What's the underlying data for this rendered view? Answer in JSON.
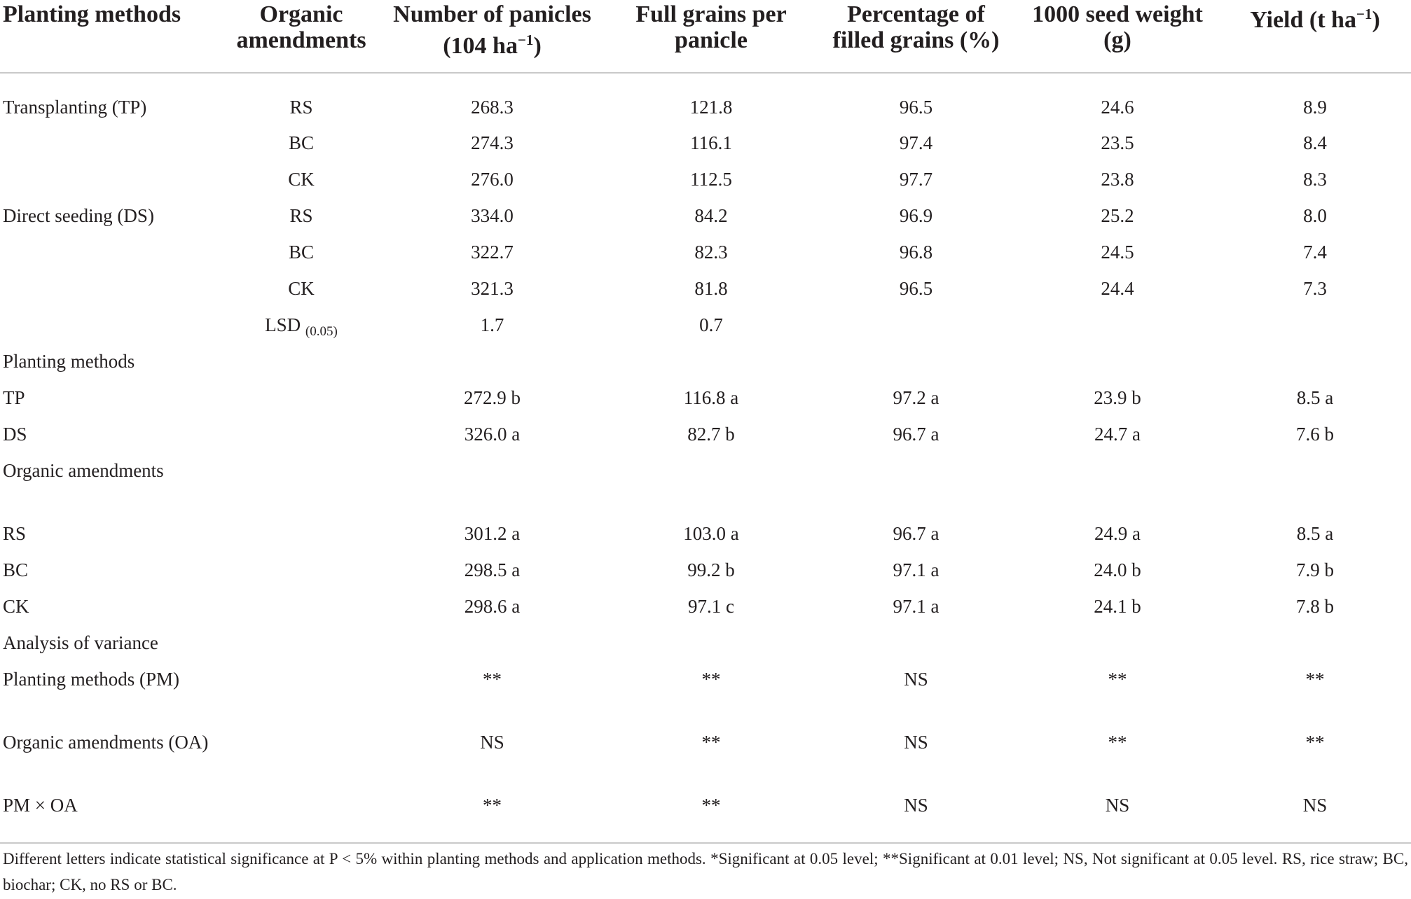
{
  "table": {
    "headers": [
      {
        "text": "Planting methods"
      },
      {
        "text": "Organic amendments"
      },
      {
        "text": "Number of panicles (104 ha",
        "sup": "−1",
        "after": ")"
      },
      {
        "text": "Full grains per panicle"
      },
      {
        "text": "Percentage of filled grains (%)"
      },
      {
        "text": "1000 seed weight (g)"
      },
      {
        "text": "Yield (t ha",
        "sup": "−1",
        "after": ")"
      }
    ],
    "rows": [
      [
        "Transplanting (TP)",
        "RS",
        "268.3",
        "121.8",
        "96.5",
        "24.6",
        "8.9"
      ],
      [
        "",
        "BC",
        "274.3",
        "116.1",
        "97.4",
        "23.5",
        "8.4"
      ],
      [
        "",
        "CK",
        "276.0",
        "112.5",
        "97.7",
        "23.8",
        "8.3"
      ],
      [
        "Direct seeding (DS)",
        "RS",
        "334.0",
        "84.2",
        "96.9",
        "25.2",
        "8.0"
      ],
      [
        "",
        "BC",
        "322.7",
        "82.3",
        "96.8",
        "24.5",
        "7.4"
      ],
      [
        "",
        "CK",
        "321.3",
        "81.8",
        "96.5",
        "24.4",
        "7.3"
      ],
      [
        "",
        "LSD",
        "1.7",
        "0.7",
        "",
        "",
        ""
      ],
      [
        "Planting methods",
        "",
        "",
        "",
        "",
        "",
        ""
      ],
      [
        "TP",
        "",
        "272.9 b",
        "116.8 a",
        "97.2 a",
        "23.9 b",
        "8.5 a"
      ],
      [
        "DS",
        "",
        "326.0 a",
        "82.7 b",
        "96.7 a",
        "24.7 a",
        "7.6 b"
      ],
      [
        "Organic amendments",
        "",
        "",
        "",
        "",
        "",
        ""
      ],
      [
        "RS",
        "",
        "301.2 a",
        "103.0 a",
        "96.7 a",
        "24.9 a",
        "8.5 a"
      ],
      [
        "BC",
        "",
        "298.5 a",
        "99.2 b",
        "97.1 a",
        "24.0 b",
        "7.9 b"
      ],
      [
        "CK",
        "",
        "298.6 a",
        "97.1 c",
        "97.1 a",
        "24.1 b",
        "7.8 b"
      ],
      [
        "Analysis of variance",
        "",
        "",
        "",
        "",
        "",
        ""
      ],
      [
        "Planting methods (PM)",
        "",
        "**",
        "**",
        "NS",
        "**",
        "**"
      ],
      [
        "Organic amendments (OA)",
        "",
        "NS",
        "**",
        "NS",
        "**",
        "**"
      ],
      [
        "PM × OA",
        "",
        "**",
        "**",
        "NS",
        "NS",
        "NS"
      ]
    ],
    "lsd_subscript": "(0.05)"
  },
  "footnote": "Different letters indicate statistical significance at P < 5% within planting methods and application methods. *Significant at 0.05 level; **Significant at 0.01 level; NS, Not significant at 0.05 level. RS, rice straw; BC, biochar; CK, no RS or BC."
}
